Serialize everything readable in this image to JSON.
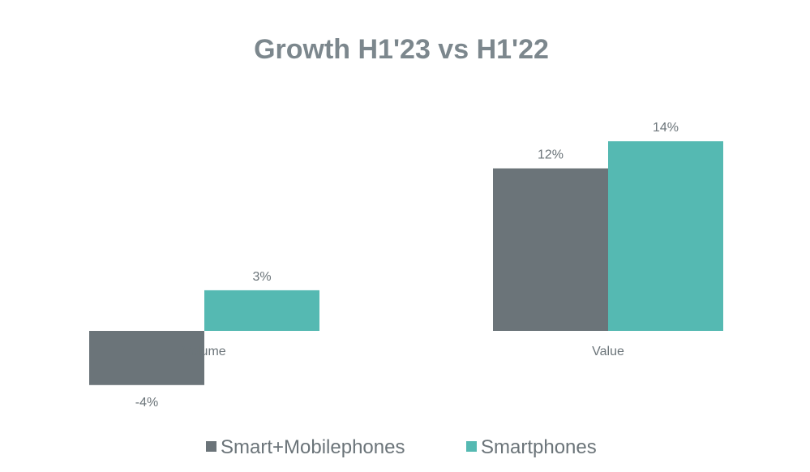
{
  "chart_data": {
    "type": "bar",
    "title": "Growth H1'23 vs H1'22",
    "categories": [
      "Volume",
      "Value"
    ],
    "series": [
      {
        "name": "Smart+Mobilephones",
        "values": [
          -4,
          12
        ],
        "labels": [
          "-4%",
          "12%"
        ],
        "color": "#6b7479"
      },
      {
        "name": "Smartphones",
        "values": [
          3,
          14
        ],
        "labels": [
          "3%",
          "14%"
        ],
        "color": "#55b9b2"
      }
    ],
    "ylim": [
      -4,
      14
    ],
    "grid": false,
    "legend": "bottom",
    "colors": {
      "title": "#7c878d",
      "text": "#6b7479",
      "background": "#ffffff"
    }
  }
}
